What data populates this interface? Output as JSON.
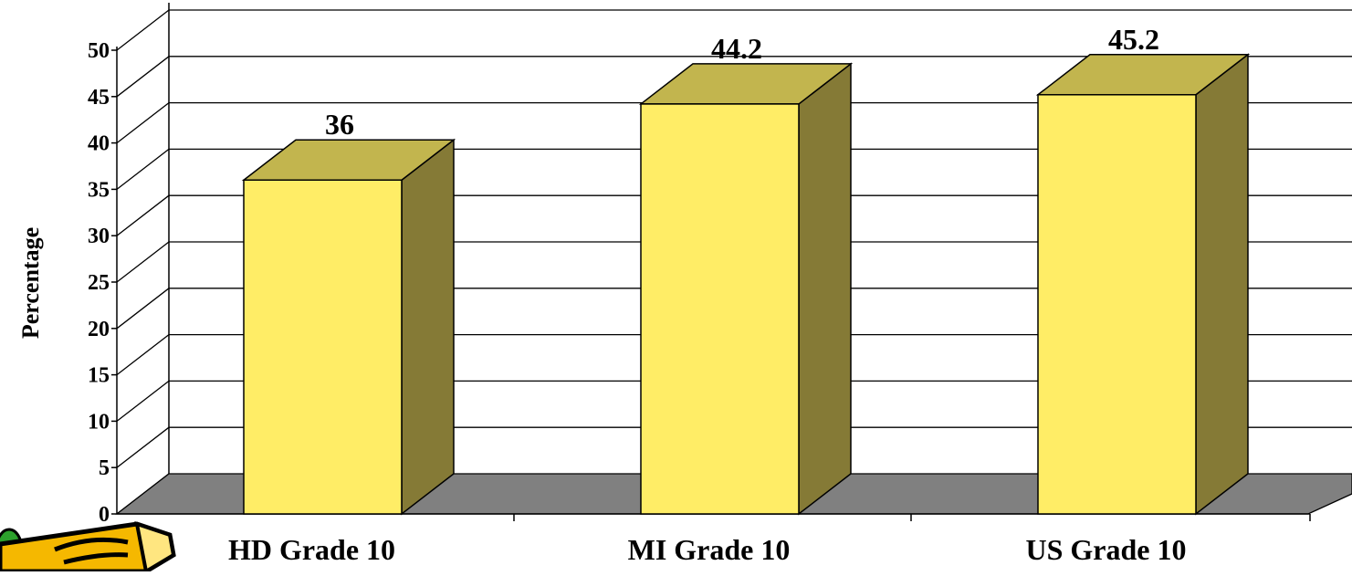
{
  "chart_data": {
    "type": "bar",
    "style": "3d-column",
    "categories": [
      "HD Grade 10",
      "MI Grade 10",
      "US Grade 10"
    ],
    "values": [
      36,
      44.2,
      45.2
    ],
    "value_labels": [
      "36",
      "44.2",
      "45.2"
    ],
    "ylabel": "Percentage",
    "xlabel": "",
    "ylim": [
      0,
      50
    ],
    "y_ticks": [
      "0",
      "5",
      "10",
      "15",
      "20",
      "25",
      "30",
      "35",
      "40",
      "45",
      "50"
    ],
    "grid": true,
    "legend": "none",
    "colors": {
      "bar_front": "#FFED66",
      "bar_top": "#C2B54E",
      "bar_side": "#857A36",
      "floor": "#808080",
      "grid": "#000000",
      "background": "#FFFFFF"
    }
  },
  "decoration": {
    "clipart": "pencil-icon"
  }
}
